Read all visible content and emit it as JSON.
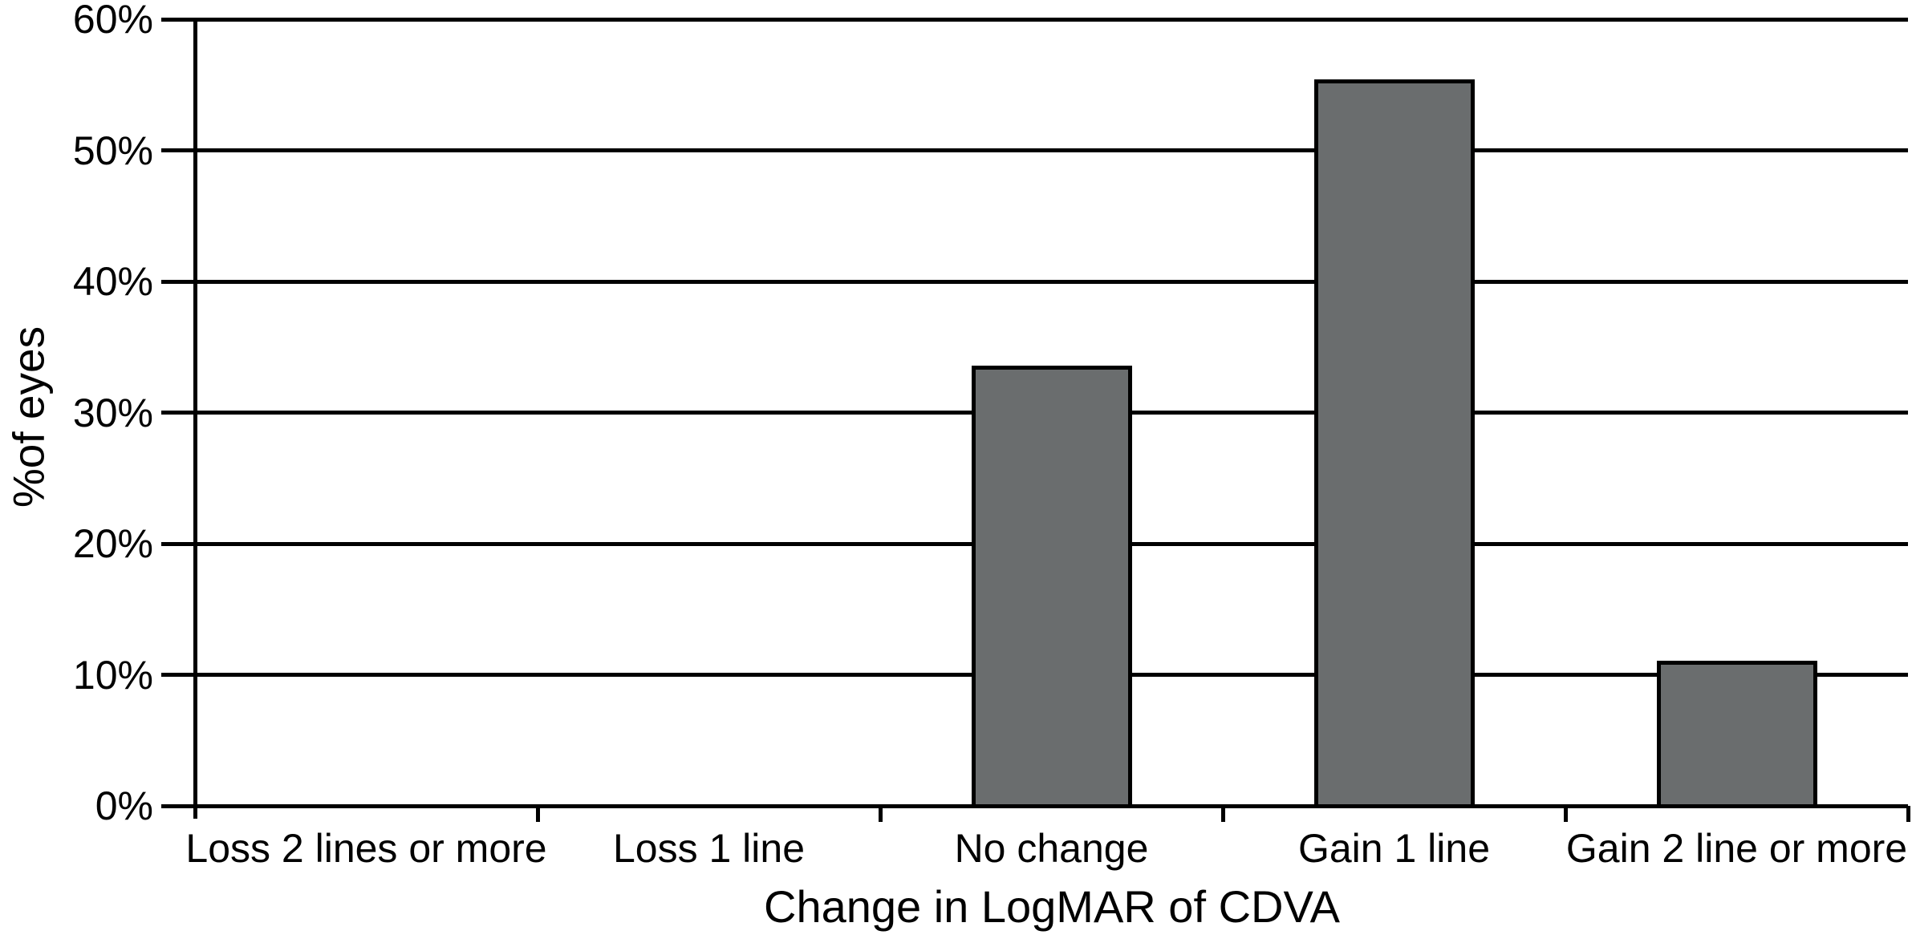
{
  "chart_data": {
    "type": "bar",
    "title": "",
    "xlabel": "Change in LogMAR of CDVA",
    "ylabel": "%of eyes",
    "categories": [
      "Loss 2 lines or more",
      "Loss 1 line",
      "No change",
      "Gain 1 line",
      "Gain 2 line or more"
    ],
    "values": [
      0,
      0,
      33.6,
      55.4,
      11.1
    ],
    "value_unit": "%",
    "ylim": [
      0,
      60
    ],
    "y_tick_values": [
      0,
      10,
      20,
      30,
      40,
      50,
      60
    ],
    "y_tick_labels": [
      "0%",
      "10%",
      "20%",
      "30%",
      "40%",
      "50%",
      "60%"
    ],
    "grid": "horizontal",
    "legend_position": "none",
    "bar_color": "#6a6d6e",
    "bar_border_color": "#000000",
    "axis_color": "#000000",
    "background_color": "#ffffff"
  }
}
